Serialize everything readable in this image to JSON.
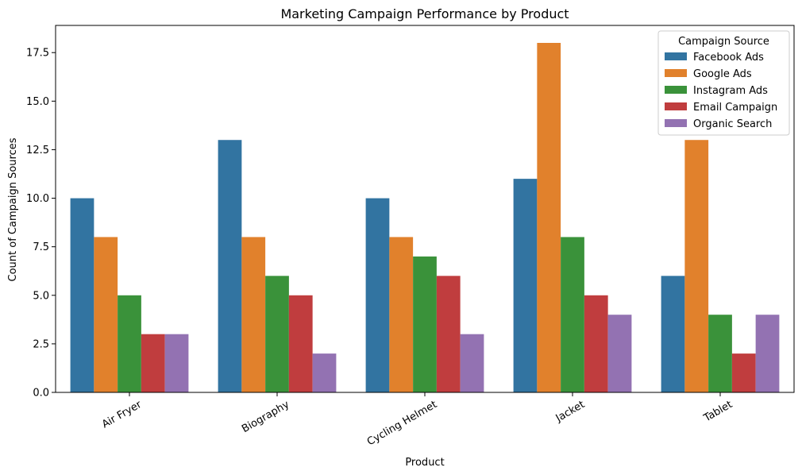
{
  "chart_data": {
    "type": "bar",
    "title": "Marketing Campaign Performance by Product",
    "xlabel": "Product",
    "ylabel": "Count of Campaign Sources",
    "categories": [
      "Air Fryer",
      "Biography",
      "Cycling Helmet",
      "Jacket",
      "Tablet"
    ],
    "series": [
      {
        "name": "Facebook Ads",
        "color": "#3274a1",
        "values": [
          10,
          13,
          10,
          11,
          6
        ]
      },
      {
        "name": "Google Ads",
        "color": "#e1812c",
        "values": [
          8,
          8,
          8,
          18,
          13
        ]
      },
      {
        "name": "Instagram Ads",
        "color": "#3a923a",
        "values": [
          5,
          6,
          7,
          8,
          4
        ]
      },
      {
        "name": "Email Campaign",
        "color": "#c03d3e",
        "values": [
          3,
          5,
          6,
          5,
          2
        ]
      },
      {
        "name": "Organic Search",
        "color": "#9372b2",
        "values": [
          3,
          2,
          3,
          4,
          4
        ]
      }
    ],
    "ylim": [
      0,
      18.9
    ],
    "yticks": [
      0.0,
      2.5,
      5.0,
      7.5,
      10.0,
      12.5,
      15.0,
      17.5
    ],
    "ytick_labels": [
      "0.0",
      "2.5",
      "5.0",
      "7.5",
      "10.0",
      "12.5",
      "15.0",
      "17.5"
    ],
    "grid": false,
    "legend": {
      "title": "Campaign Source",
      "placement": "top-right"
    }
  }
}
